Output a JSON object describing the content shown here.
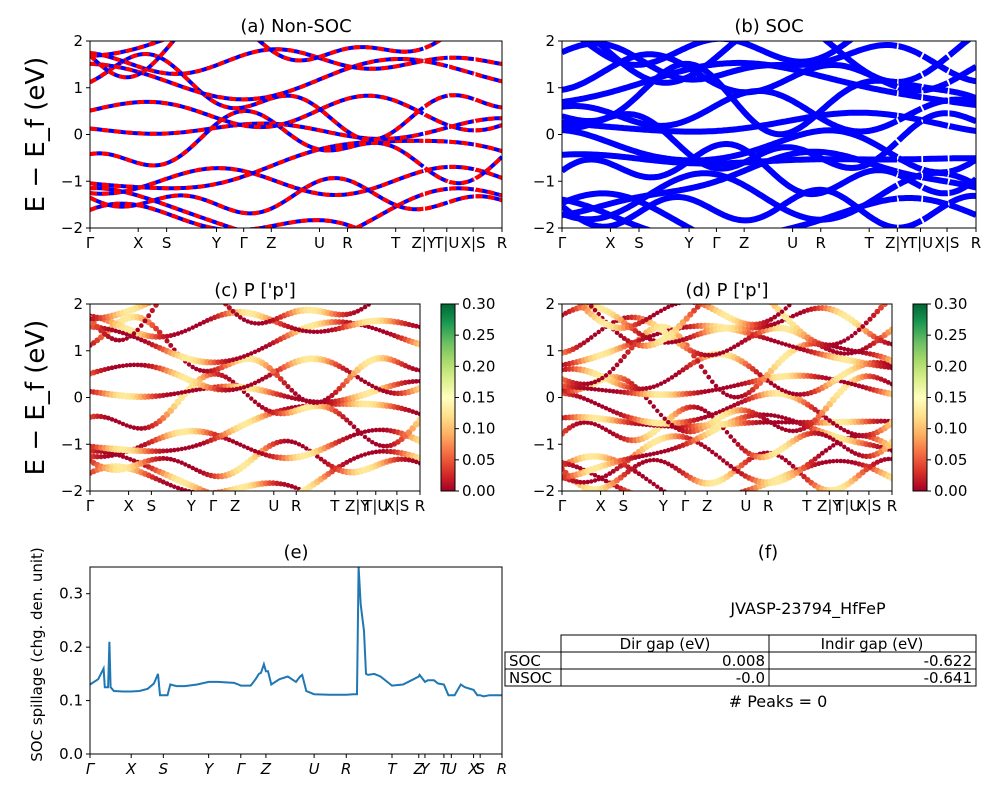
{
  "chart_data": [
    {
      "id": "a",
      "type": "line",
      "title": "(a) Non-SOC",
      "ylabel": "E − E_f (eV)",
      "ylim": [
        -2,
        2
      ],
      "yticks": [
        -2,
        -1,
        0,
        1,
        2
      ],
      "kpath_labels": [
        "Γ",
        "X",
        "S",
        "Y",
        "Γ",
        "Z",
        "U",
        "R",
        "T",
        "Z|Y",
        "T|U",
        "X|S",
        "R"
      ],
      "kpath_x": [
        0,
        0.117,
        0.186,
        0.307,
        0.373,
        0.44,
        0.557,
        0.625,
        0.742,
        0.81,
        0.866,
        0.93,
        1.0
      ],
      "series": [
        {
          "color": "#0000ff",
          "values": []
        },
        {
          "color": "#ff0000",
          "values": []
        }
      ]
    },
    {
      "id": "b",
      "type": "line",
      "title": "(b) SOC",
      "ylim": [
        -2,
        2
      ],
      "yticks": [
        -2,
        -1,
        0,
        1,
        2
      ],
      "kpath_labels": [
        "Γ",
        "X",
        "S",
        "Y",
        "Γ",
        "Z",
        "U",
        "R",
        "T",
        "Z|Y",
        "T|U",
        "X|S",
        "R"
      ],
      "kpath_x": [
        0,
        0.117,
        0.186,
        0.307,
        0.373,
        0.44,
        0.557,
        0.625,
        0.742,
        0.81,
        0.866,
        0.93,
        1.0
      ],
      "series": [
        {
          "color": "#0000ff",
          "values": []
        }
      ]
    },
    {
      "id": "c",
      "type": "scatter",
      "title": "(c)  P ['p']",
      "ylabel": "E − E_f (eV)",
      "ylim": [
        -2,
        2
      ],
      "yticks": [
        -2,
        -1,
        0,
        1,
        2
      ],
      "kpath_labels": [
        "Γ",
        "X",
        "S",
        "Y",
        "Γ",
        "Z",
        "U",
        "R",
        "T",
        "Z|Y",
        "T|U",
        "X|S",
        "R"
      ],
      "kpath_x": [
        0,
        0.117,
        0.186,
        0.307,
        0.373,
        0.44,
        0.557,
        0.625,
        0.742,
        0.81,
        0.866,
        0.93,
        1.0
      ],
      "colorbar": {
        "min": 0.0,
        "max": 0.3,
        "ticks": [
          "0.00",
          "0.05",
          "0.10",
          "0.15",
          "0.20",
          "0.25",
          "0.30"
        ],
        "colormap": "RdYlGn"
      }
    },
    {
      "id": "d",
      "type": "scatter",
      "title": "(d) P ['p']",
      "ylim": [
        -2,
        2
      ],
      "yticks": [
        -2,
        -1,
        0,
        1,
        2
      ],
      "kpath_labels": [
        "Γ",
        "X",
        "S",
        "Y",
        "Γ",
        "Z",
        "U",
        "R",
        "T",
        "Z|Y",
        "T|U",
        "X|S",
        "R"
      ],
      "kpath_x": [
        0,
        0.117,
        0.186,
        0.307,
        0.373,
        0.44,
        0.557,
        0.625,
        0.742,
        0.81,
        0.866,
        0.93,
        1.0
      ],
      "colorbar": {
        "min": 0.0,
        "max": 0.3,
        "ticks": [
          "0.00",
          "0.05",
          "0.10",
          "0.15",
          "0.20",
          "0.25",
          "0.30"
        ],
        "colormap": "RdYlGn"
      }
    },
    {
      "id": "e",
      "type": "line",
      "title": "(e)",
      "ylabel": "SOC spillage (chg. den. unit)",
      "ylim": [
        0.0,
        0.35
      ],
      "yticks": [
        0.0,
        0.1,
        0.2,
        0.3
      ],
      "kpath_labels": [
        "Γ",
        "X",
        "S",
        "Y",
        "Γ",
        "Z",
        "U",
        "R",
        "T",
        "Z",
        "Y",
        "T",
        "U",
        "X",
        "S",
        "R"
      ],
      "kpath_x": [
        0,
        0.1,
        0.178,
        0.288,
        0.366,
        0.427,
        0.544,
        0.622,
        0.733,
        0.798,
        0.813,
        0.859,
        0.877,
        0.931,
        0.947,
        1.0
      ],
      "series": [
        {
          "color": "#1f77b4",
          "x": [
            0,
            0.02,
            0.033,
            0.036,
            0.044,
            0.047,
            0.05,
            0.058,
            0.08,
            0.1,
            0.12,
            0.14,
            0.155,
            0.165,
            0.17,
            0.178,
            0.188,
            0.195,
            0.21,
            0.23,
            0.26,
            0.288,
            0.31,
            0.33,
            0.35,
            0.36,
            0.366,
            0.375,
            0.39,
            0.402,
            0.41,
            0.415,
            0.422,
            0.427,
            0.432,
            0.44,
            0.46,
            0.48,
            0.5,
            0.51,
            0.515,
            0.525,
            0.544,
            0.58,
            0.622,
            0.64,
            0.648,
            0.652,
            0.657,
            0.665,
            0.67,
            0.675,
            0.69,
            0.705,
            0.733,
            0.76,
            0.78,
            0.798,
            0.8,
            0.813,
            0.82,
            0.835,
            0.845,
            0.859,
            0.87,
            0.877,
            0.885,
            0.9,
            0.91,
            0.931,
            0.94,
            0.947,
            0.955,
            0.97,
            1.0
          ],
          "values": [
            0.13,
            0.14,
            0.16,
            0.125,
            0.125,
            0.21,
            0.125,
            0.118,
            0.117,
            0.117,
            0.118,
            0.122,
            0.132,
            0.15,
            0.11,
            0.11,
            0.11,
            0.13,
            0.127,
            0.127,
            0.13,
            0.135,
            0.135,
            0.134,
            0.133,
            0.13,
            0.128,
            0.128,
            0.128,
            0.14,
            0.15,
            0.152,
            0.168,
            0.155,
            0.155,
            0.13,
            0.14,
            0.145,
            0.135,
            0.145,
            0.148,
            0.118,
            0.112,
            0.111,
            0.111,
            0.112,
            0.112,
            0.35,
            0.28,
            0.23,
            0.15,
            0.148,
            0.15,
            0.145,
            0.128,
            0.13,
            0.138,
            0.145,
            0.148,
            0.135,
            0.138,
            0.138,
            0.132,
            0.13,
            0.11,
            0.11,
            0.11,
            0.13,
            0.125,
            0.12,
            0.11,
            0.11,
            0.108,
            0.11,
            0.11
          ]
        }
      ]
    }
  ],
  "panel_f": {
    "title": "(f)",
    "material": "JVASP-23794_HfFeP",
    "table": {
      "headers": [
        "Dir gap (eV)",
        "Indir gap (eV)"
      ],
      "rows": [
        {
          "label": "SOC",
          "dir": "0.008",
          "indir": "-0.622"
        },
        {
          "label": "NSOC",
          "dir": "-0.0",
          "indir": "-0.641"
        }
      ]
    },
    "peaks_text": "# Peaks = 0"
  }
}
